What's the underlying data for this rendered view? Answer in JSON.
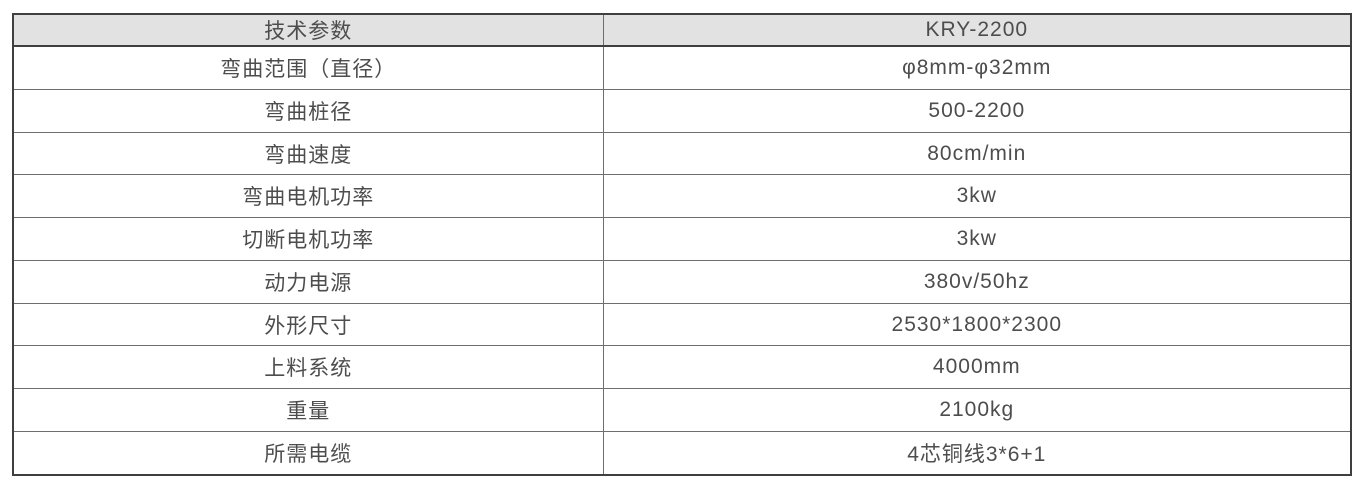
{
  "table": {
    "header": {
      "param_label": "技术参数",
      "model_label": "KRY-2200"
    },
    "rows": [
      {
        "label": "弯曲范围（直径）",
        "value": "φ8mm-φ32mm"
      },
      {
        "label": "弯曲桩径",
        "value": "500-2200"
      },
      {
        "label": "弯曲速度",
        "value": "80cm/min"
      },
      {
        "label": "弯曲电机功率",
        "value": "3kw"
      },
      {
        "label": "切断电机功率",
        "value": "3kw"
      },
      {
        "label": "动力电源",
        "value": "380v/50hz"
      },
      {
        "label": "外形尺寸",
        "value": "2530*1800*2300"
      },
      {
        "label": "上料系统",
        "value": "4000mm"
      },
      {
        "label": "重量",
        "value": "2100kg"
      },
      {
        "label": "所需电缆",
        "value": "4芯铜线3*6+1"
      }
    ],
    "colors": {
      "header_bg": "#e2e2e2",
      "border_outer": "#3f3f3f",
      "border_inner": "#6e6e6e",
      "text": "#4d4d4d",
      "page_bg": "#ffffff"
    }
  }
}
